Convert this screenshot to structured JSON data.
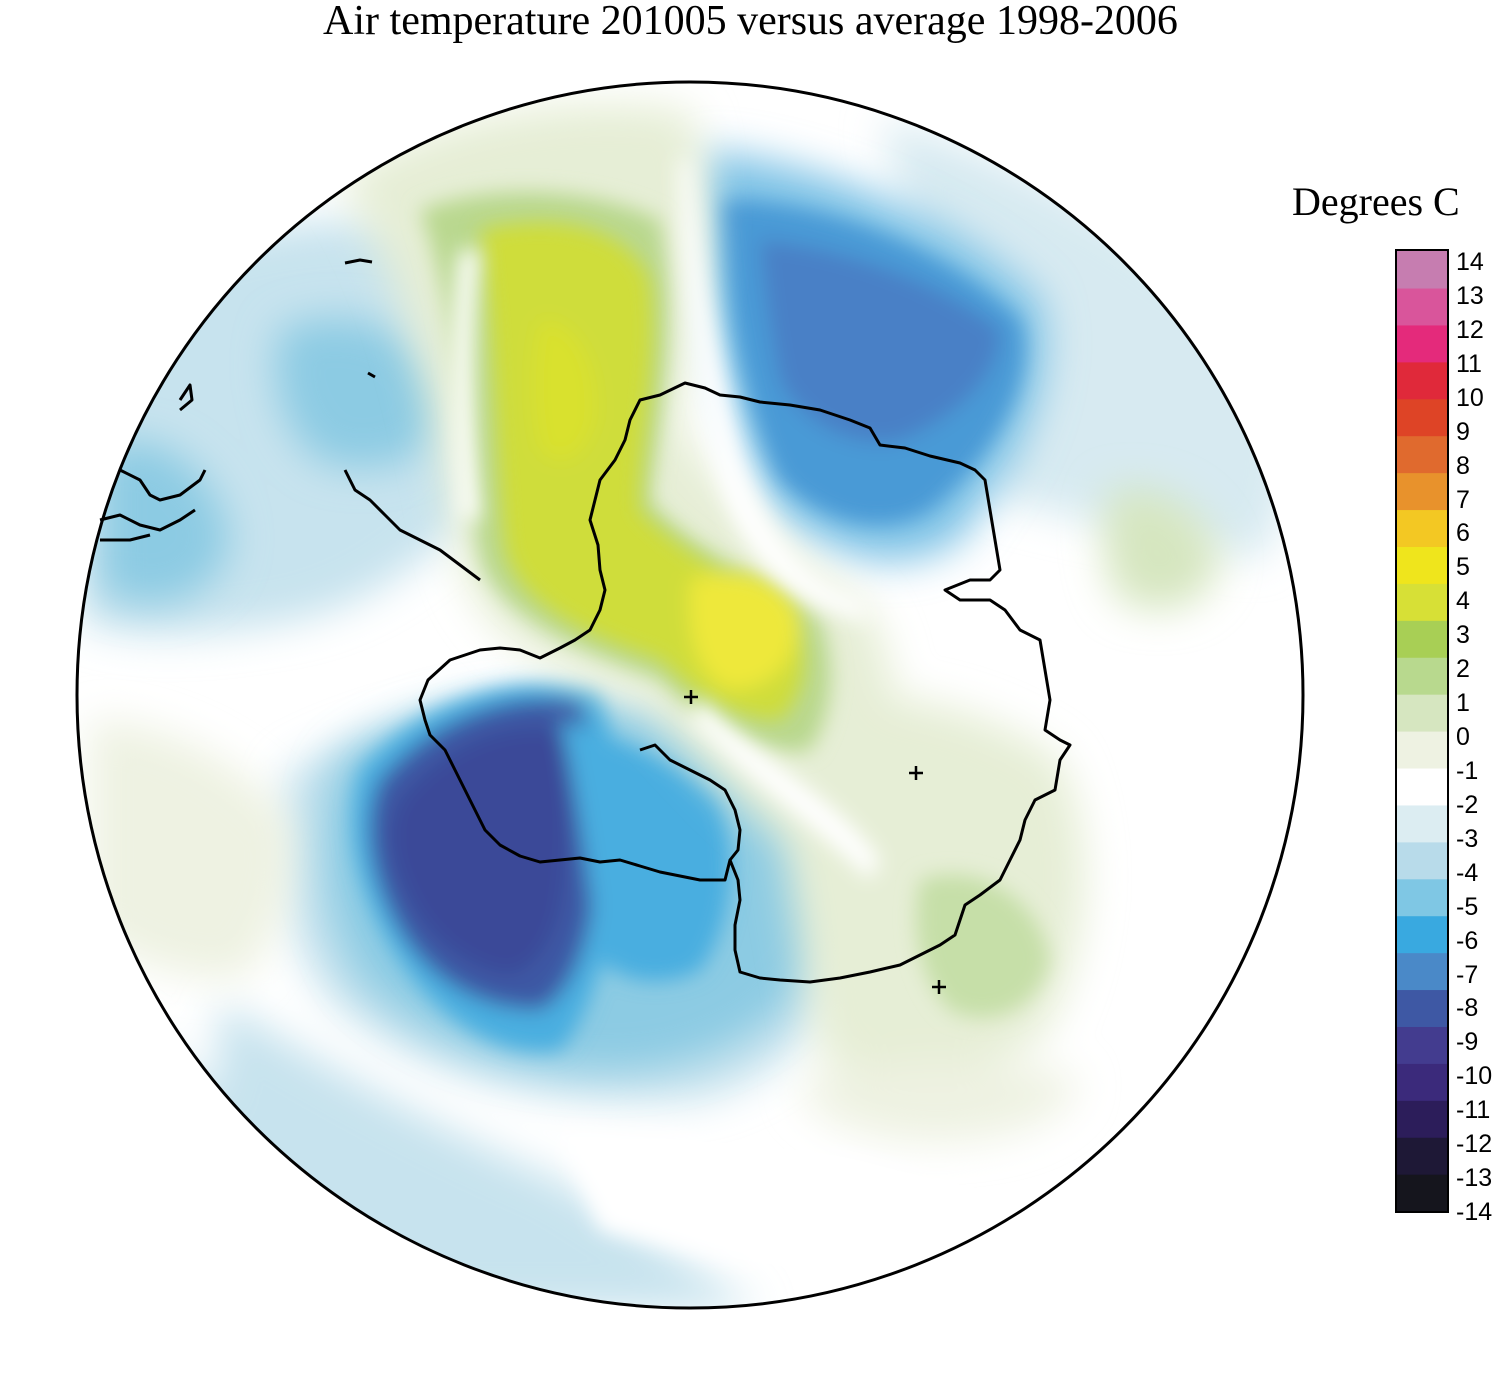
{
  "title": "Air temperature 201005 versus average 1998-2006",
  "legend": {
    "title": "Degrees C",
    "ticks": [
      "14",
      "13",
      "12",
      "11",
      "10",
      "9",
      "8",
      "7",
      "6",
      "5",
      "4",
      "3",
      "2",
      "1",
      "0",
      "-1",
      "-2",
      "-3",
      "-4",
      "-5",
      "-6",
      "-7",
      "-8",
      "-9",
      "-10",
      "-11",
      "-12",
      "-13",
      "-14"
    ],
    "range": [
      -14,
      14
    ],
    "colors": [
      "#15151d",
      "#1e1836",
      "#2c1d5a",
      "#3b2a7b",
      "#433c8f",
      "#3e58a4",
      "#4a89c8",
      "#39a9e0",
      "#7fc7e4",
      "#b8dbea",
      "#dcedf2",
      "#ffffff",
      "#eef2e2",
      "#d6e6c0",
      "#b8d98e",
      "#a8cf55",
      "#d7e036",
      "#efe51c",
      "#f3c823",
      "#e8922c",
      "#e06a2e",
      "#de4426",
      "#e0293a",
      "#e42a7b",
      "#d9559b",
      "#c67db0"
    ]
  },
  "map": {
    "projection": "south polar stereographic",
    "colors": {
      "ocean_neutral": "#ffffff",
      "light_blue": "#c7e3ee",
      "mid_blue": "#8ccbe3",
      "blue": "#49aee0",
      "deep_blue": "#4a80c6",
      "strong_cold": "#3a4998",
      "light_green": "#e6eed6",
      "green": "#b9d88f",
      "yellow_green": "#cfdd3a",
      "yellow": "#eee83a",
      "coastline": "#000000"
    }
  }
}
